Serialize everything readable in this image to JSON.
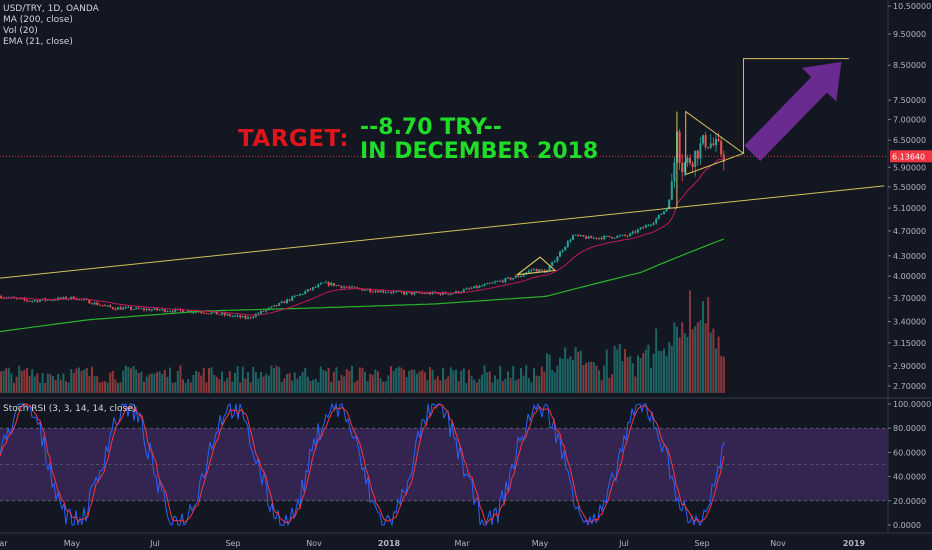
{
  "legend": {
    "symbol": "USD/TRY, 1D, OANDA",
    "ma": "MA (200, close)",
    "vol": "Vol (20)",
    "ema": "EMA (21, close)"
  },
  "stoch_legend": "Stoch RSI (3, 3, 14, 14, close)",
  "annotation": {
    "label": "TARGET:",
    "line1": "--8.70 TRY--",
    "line2": "IN DECEMBER 2018"
  },
  "colors": {
    "background": "#131722",
    "up": "#26a69a",
    "down": "#ef5350",
    "ma200": "#2bb32b",
    "ema21": "#c2185b",
    "trendline": "#d4c05a",
    "arrow": "#6a2a8f",
    "stoch_k": "#2962ff",
    "stoch_d": "#f23645",
    "stoch_band": "#3a2858",
    "price_label": "#f23645"
  },
  "chart_data": {
    "type": "candlestick",
    "price_axis_ticks": [
      "10.50000",
      "9.50000",
      "8.50000",
      "7.50000",
      "7.00000",
      "6.50000",
      "5.90000",
      "5.50000",
      "5.10000",
      "4.70000",
      "4.30000",
      "4.00000",
      "3.70000",
      "3.40000",
      "3.15000",
      "2.90000",
      "2.70000"
    ],
    "price_axis_values": [
      10.5,
      9.5,
      8.5,
      7.5,
      7.0,
      6.5,
      5.9,
      5.5,
      5.1,
      4.7,
      4.3,
      4.0,
      3.7,
      3.4,
      3.15,
      2.9,
      2.7
    ],
    "current_price": "6.13640",
    "current_price_value": 6.1364,
    "stoch_axis_ticks": [
      "100.0000",
      "80.0000",
      "60.0000",
      "40.0000",
      "20.0000",
      "0.0000"
    ],
    "stoch_axis_values": [
      100,
      80,
      60,
      40,
      20,
      0
    ],
    "time_axis": [
      "Mar",
      "May",
      "Jul",
      "Sep",
      "Nov",
      "2018",
      "Mar",
      "May",
      "Jul",
      "Sep",
      "Nov",
      "2019"
    ],
    "price_keypoints": [
      [
        "2017-02-20",
        3.72
      ],
      [
        "2017-03-15",
        3.66
      ],
      [
        "2017-04-20",
        3.7
      ],
      [
        "2017-05-20",
        3.57
      ],
      [
        "2017-07-01",
        3.54
      ],
      [
        "2017-08-01",
        3.52
      ],
      [
        "2017-09-05",
        3.44
      ],
      [
        "2017-10-01",
        3.62
      ],
      [
        "2017-11-05",
        3.9
      ],
      [
        "2017-12-01",
        3.82
      ],
      [
        "2018-01-10",
        3.76
      ],
      [
        "2018-02-15",
        3.76
      ],
      [
        "2018-03-15",
        3.88
      ],
      [
        "2018-04-10",
        4.0
      ],
      [
        "2018-04-20",
        4.1
      ],
      [
        "2018-05-01",
        4.06
      ],
      [
        "2018-05-22",
        4.62
      ],
      [
        "2018-06-05",
        4.58
      ],
      [
        "2018-07-05",
        4.62
      ],
      [
        "2018-07-25",
        4.85
      ],
      [
        "2018-08-05",
        5.1
      ],
      [
        "2018-08-10",
        5.6
      ],
      [
        "2018-08-13",
        6.9
      ],
      [
        "2018-08-16",
        5.9
      ],
      [
        "2018-08-25",
        6.1
      ],
      [
        "2018-09-05",
        6.5
      ],
      [
        "2018-09-15",
        6.3
      ],
      [
        "2018-09-20",
        6.14
      ]
    ],
    "ma200_keypoints": [
      [
        "2017-02-20",
        3.28
      ],
      [
        "2017-05-01",
        3.42
      ],
      [
        "2017-08-01",
        3.53
      ],
      [
        "2017-11-01",
        3.57
      ],
      [
        "2018-02-01",
        3.62
      ],
      [
        "2018-05-01",
        3.72
      ],
      [
        "2018-07-15",
        4.05
      ],
      [
        "2018-09-20",
        4.57
      ]
    ],
    "trendline_1": [
      [
        "2017-02-20",
        3.97
      ],
      [
        "2019-01-25",
        5.52
      ]
    ],
    "breakout_box": {
      "x_start": "2018-08-13",
      "x_end": "2018-09-26",
      "y_top": 7.2,
      "y_bottom": 5.1
    },
    "pennant_small": [
      [
        "2018-04-08",
        4.02
      ],
      [
        "2018-04-26",
        4.28
      ],
      [
        "2018-05-08",
        4.08
      ]
    ],
    "pennant_large": [
      [
        "2018-08-20",
        7.2
      ],
      [
        "2018-10-05",
        6.2
      ],
      [
        "2018-08-20",
        5.75
      ]
    ],
    "target_box": {
      "x_start": "2018-10-05",
      "x_end": "2018-12-28",
      "y_top": 8.7,
      "y_bottom": 6.2
    },
    "target_price": 8.7,
    "stoch_band": [
      20,
      80
    ]
  }
}
